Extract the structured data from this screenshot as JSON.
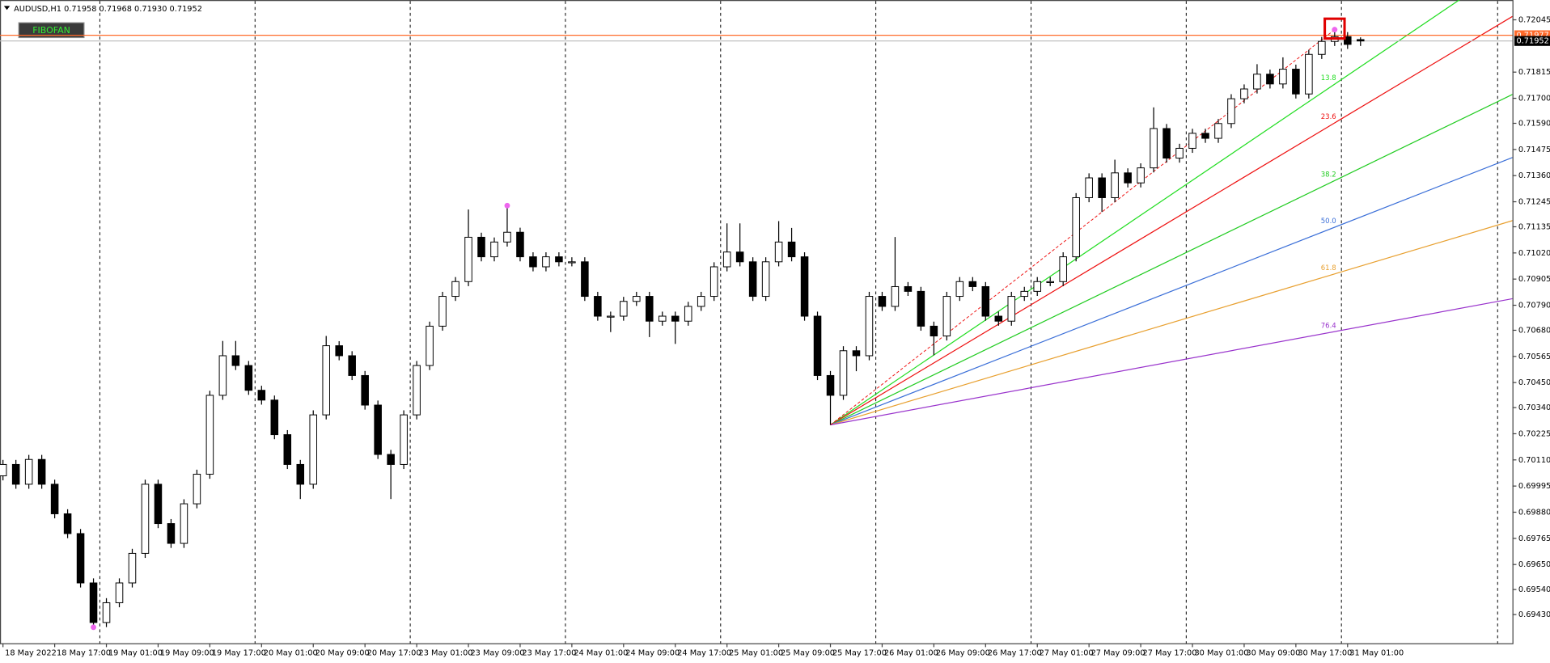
{
  "chart_data": {
    "type": "candlestick",
    "header": "AUDUSD,H1  0.71958 0.71968 0.71930 0.71952",
    "bull_color": "#ffffff",
    "bear_color": "#000000",
    "x": [
      0,
      2,
      4,
      6,
      8,
      10,
      12,
      14,
      16,
      18,
      20,
      22,
      24,
      26,
      28,
      30,
      32,
      34,
      36,
      38,
      40,
      42,
      44,
      46,
      48,
      50,
      52,
      54,
      56,
      58,
      60,
      62,
      64,
      66,
      68,
      70,
      72,
      74,
      76,
      78,
      80,
      82,
      84,
      86,
      88,
      90,
      92,
      94,
      96,
      98,
      100,
      102,
      104,
      106,
      108,
      110,
      112,
      114,
      116,
      118,
      120,
      122,
      124,
      126,
      128,
      130,
      132,
      134,
      136,
      138,
      140,
      142,
      144,
      146,
      148,
      150,
      152,
      154,
      156,
      158,
      160,
      162,
      164,
      166,
      168,
      170,
      172,
      174,
      176,
      178,
      180,
      182,
      184,
      186,
      188,
      190,
      192,
      194,
      196,
      198,
      200,
      202,
      204,
      206,
      208,
      210
    ],
    "ohlc": [
      [
        0.7004,
        0.7011,
        0.7002,
        0.7009
      ],
      [
        0.7009,
        0.7011,
        0.69983,
        0.70003
      ],
      [
        0.70003,
        0.70132,
        0.69983,
        0.70112
      ],
      [
        0.70112,
        0.70132,
        0.69983,
        0.70003
      ],
      [
        0.70003,
        0.70023,
        0.69853,
        0.69873
      ],
      [
        0.69873,
        0.69893,
        0.69766,
        0.69786
      ],
      [
        0.69786,
        0.69806,
        0.69549,
        0.69569
      ],
      [
        0.69569,
        0.69589,
        0.69374,
        0.69395
      ],
      [
        0.69395,
        0.69502,
        0.69375,
        0.69482
      ],
      [
        0.69482,
        0.69589,
        0.69462,
        0.69569
      ],
      [
        0.69569,
        0.69719,
        0.69549,
        0.69699
      ],
      [
        0.69699,
        0.70023,
        0.69679,
        0.70003
      ],
      [
        0.70003,
        0.70023,
        0.6981,
        0.6983
      ],
      [
        0.6983,
        0.6985,
        0.69723,
        0.69743
      ],
      [
        0.69743,
        0.69937,
        0.69723,
        0.69917
      ],
      [
        0.69917,
        0.70067,
        0.69897,
        0.70047
      ],
      [
        0.70047,
        0.70414,
        0.70027,
        0.70394
      ],
      [
        0.70394,
        0.70633,
        0.70374,
        0.70568
      ],
      [
        0.70568,
        0.70633,
        0.70505,
        0.70525
      ],
      [
        0.70525,
        0.70545,
        0.70396,
        0.70416
      ],
      [
        0.70416,
        0.70436,
        0.70353,
        0.70373
      ],
      [
        0.70373,
        0.70393,
        0.70201,
        0.70221
      ],
      [
        0.70221,
        0.70241,
        0.7007,
        0.7009
      ],
      [
        0.7009,
        0.7011,
        0.69938,
        0.70003
      ],
      [
        0.70003,
        0.70328,
        0.69983,
        0.70308
      ],
      [
        0.70308,
        0.70655,
        0.70288,
        0.70612
      ],
      [
        0.70612,
        0.70632,
        0.70548,
        0.70568
      ],
      [
        0.70568,
        0.70588,
        0.70461,
        0.70481
      ],
      [
        0.70481,
        0.70501,
        0.70331,
        0.70351
      ],
      [
        0.70351,
        0.70371,
        0.70114,
        0.70134
      ],
      [
        0.70134,
        0.70154,
        0.69938,
        0.7009
      ],
      [
        0.7009,
        0.70328,
        0.7007,
        0.70308
      ],
      [
        0.70308,
        0.70545,
        0.70288,
        0.70525
      ],
      [
        0.70525,
        0.70718,
        0.70505,
        0.70698
      ],
      [
        0.70698,
        0.70849,
        0.70678,
        0.70829
      ],
      [
        0.70829,
        0.70914,
        0.70809,
        0.70894
      ],
      [
        0.70894,
        0.71211,
        0.70874,
        0.71089
      ],
      [
        0.71089,
        0.71109,
        0.70983,
        0.71003
      ],
      [
        0.71003,
        0.71088,
        0.70983,
        0.71068
      ],
      [
        0.71068,
        0.71228,
        0.71048,
        0.71111
      ],
      [
        0.71111,
        0.71131,
        0.70983,
        0.71003
      ],
      [
        0.71003,
        0.71023,
        0.70939,
        0.70959
      ],
      [
        0.70959,
        0.71023,
        0.70939,
        0.71003
      ],
      [
        0.71003,
        0.71023,
        0.70961,
        0.70981
      ],
      [
        0.70981,
        0.71001,
        0.70961,
        0.70981
      ],
      [
        0.70981,
        0.71001,
        0.70809,
        0.70829
      ],
      [
        0.70829,
        0.70849,
        0.70722,
        0.70742
      ],
      [
        0.70742,
        0.70762,
        0.70672,
        0.70742
      ],
      [
        0.70742,
        0.70827,
        0.70722,
        0.70807
      ],
      [
        0.70807,
        0.70849,
        0.70787,
        0.70829
      ],
      [
        0.70829,
        0.70849,
        0.7065,
        0.7072
      ],
      [
        0.7072,
        0.70762,
        0.707,
        0.70742
      ],
      [
        0.70742,
        0.70762,
        0.7062,
        0.7072
      ],
      [
        0.7072,
        0.70805,
        0.707,
        0.70785
      ],
      [
        0.70785,
        0.70849,
        0.70765,
        0.70829
      ],
      [
        0.70829,
        0.70979,
        0.70809,
        0.70959
      ],
      [
        0.70959,
        0.7115,
        0.70939,
        0.71024
      ],
      [
        0.71024,
        0.7115,
        0.70961,
        0.70981
      ],
      [
        0.70981,
        0.71001,
        0.70809,
        0.70829
      ],
      [
        0.70829,
        0.71001,
        0.70809,
        0.70981
      ],
      [
        0.70981,
        0.7116,
        0.70961,
        0.71068
      ],
      [
        0.71068,
        0.7113,
        0.70983,
        0.71003
      ],
      [
        0.71003,
        0.71023,
        0.70722,
        0.70742
      ],
      [
        0.70742,
        0.70762,
        0.70461,
        0.70481
      ],
      [
        0.70481,
        0.70501,
        0.70264,
        0.70394
      ],
      [
        0.70394,
        0.7061,
        0.70374,
        0.7059
      ],
      [
        0.7059,
        0.7061,
        0.705,
        0.70568
      ],
      [
        0.70568,
        0.70849,
        0.70548,
        0.70829
      ],
      [
        0.70829,
        0.70849,
        0.70765,
        0.70785
      ],
      [
        0.70785,
        0.7109,
        0.70765,
        0.70872
      ],
      [
        0.70872,
        0.70892,
        0.70831,
        0.70851
      ],
      [
        0.70851,
        0.70871,
        0.70678,
        0.70698
      ],
      [
        0.70698,
        0.70718,
        0.7057,
        0.70655
      ],
      [
        0.70655,
        0.70849,
        0.70635,
        0.70829
      ],
      [
        0.70829,
        0.70914,
        0.70809,
        0.70894
      ],
      [
        0.70894,
        0.70914,
        0.70852,
        0.70872
      ],
      [
        0.70872,
        0.70892,
        0.70722,
        0.70742
      ],
      [
        0.70742,
        0.70762,
        0.707,
        0.7072
      ],
      [
        0.7072,
        0.70849,
        0.707,
        0.70829
      ],
      [
        0.70829,
        0.70871,
        0.70809,
        0.70851
      ],
      [
        0.70851,
        0.70914,
        0.70831,
        0.70894
      ],
      [
        0.70894,
        0.70914,
        0.70874,
        0.70894
      ],
      [
        0.70894,
        0.71023,
        0.70874,
        0.71003
      ],
      [
        0.71003,
        0.71283,
        0.70983,
        0.71263
      ],
      [
        0.71263,
        0.7137,
        0.71243,
        0.7135
      ],
      [
        0.7135,
        0.7137,
        0.712,
        0.71263
      ],
      [
        0.71263,
        0.7143,
        0.71243,
        0.71372
      ],
      [
        0.71372,
        0.71392,
        0.71308,
        0.71328
      ],
      [
        0.71328,
        0.71414,
        0.71308,
        0.71394
      ],
      [
        0.71394,
        0.7166,
        0.71374,
        0.71567
      ],
      [
        0.71567,
        0.71587,
        0.71417,
        0.71437
      ],
      [
        0.71437,
        0.715,
        0.71417,
        0.7148
      ],
      [
        0.7148,
        0.71566,
        0.7146,
        0.71546
      ],
      [
        0.71546,
        0.71566,
        0.71504,
        0.71524
      ],
      [
        0.71524,
        0.71609,
        0.71504,
        0.71589
      ],
      [
        0.71589,
        0.71718,
        0.71569,
        0.71698
      ],
      [
        0.71698,
        0.71761,
        0.71678,
        0.71741
      ],
      [
        0.71741,
        0.7185,
        0.71721,
        0.71806
      ],
      [
        0.71806,
        0.71826,
        0.71743,
        0.71763
      ],
      [
        0.71763,
        0.7188,
        0.71743,
        0.71828
      ],
      [
        0.71828,
        0.71848,
        0.71699,
        0.71719
      ],
      [
        0.71719,
        0.71913,
        0.71699,
        0.71893
      ],
      [
        0.71893,
        0.7197,
        0.71873,
        0.7195
      ],
      [
        0.7195,
        0.72002,
        0.7193,
        0.71971
      ],
      [
        0.71971,
        0.71991,
        0.71917,
        0.71937
      ],
      [
        0.71958,
        0.71968,
        0.7193,
        0.71952
      ]
    ],
    "xlim": [
      -0.46,
      233.5
    ],
    "xticks": [
      {
        "value": 0,
        "label": "18 May 2022"
      },
      {
        "value": 8,
        "label": "18 May 17:00"
      },
      {
        "value": 16,
        "label": "19 May 01:00"
      },
      {
        "value": 24,
        "label": "19 May 09:00"
      },
      {
        "value": 32,
        "label": "19 May 17:00"
      },
      {
        "value": 40,
        "label": "20 May 01:00"
      },
      {
        "value": 48,
        "label": "20 May 09:00"
      },
      {
        "value": 56,
        "label": "20 May 17:00"
      },
      {
        "value": 64,
        "label": "23 May 01:00"
      },
      {
        "value": 72,
        "label": "23 May 09:00"
      },
      {
        "value": 80,
        "label": "23 May 17:00"
      },
      {
        "value": 88,
        "label": "24 May 01:00"
      },
      {
        "value": 96,
        "label": "24 May 09:00"
      },
      {
        "value": 104,
        "label": "24 May 17:00"
      },
      {
        "value": 112,
        "label": "25 May 01:00"
      },
      {
        "value": 120,
        "label": "25 May 09:00"
      },
      {
        "value": 128,
        "label": "25 May 17:00"
      },
      {
        "value": 136,
        "label": "26 May 01:00"
      },
      {
        "value": 144,
        "label": "26 May 09:00"
      },
      {
        "value": 152,
        "label": "26 May 17:00"
      },
      {
        "value": 160,
        "label": "27 May 01:00"
      },
      {
        "value": 168,
        "label": "27 May 09:00"
      },
      {
        "value": 176,
        "label": "27 May 17:00"
      },
      {
        "value": 184,
        "label": "30 May 01:00"
      },
      {
        "value": 192,
        "label": "30 May 09:00"
      },
      {
        "value": 200,
        "label": "30 May 17:00"
      },
      {
        "value": 208,
        "label": "31 May 01:00"
      }
    ],
    "ylim": [
      0.69304,
      0.72132
    ],
    "yticks": [
      0.72045,
      0.71815,
      {
        "value": 0.717,
        "label": "0.71700"
      },
      {
        "value": 0.7159,
        "label": "0.71590"
      },
      0.71475,
      {
        "value": 0.7136,
        "label": "0.71360"
      },
      0.71245,
      0.71135,
      {
        "value": 0.7102,
        "label": "0.71020"
      },
      0.70905,
      {
        "value": 0.7079,
        "label": "0.70790"
      },
      {
        "value": 0.7068,
        "label": "0.70680"
      },
      0.70565,
      {
        "value": 0.7045,
        "label": "0.70450"
      },
      {
        "value": 0.7034,
        "label": "0.70340"
      },
      0.70225,
      {
        "value": 0.7011,
        "label": "0.70110"
      },
      0.69995,
      {
        "value": 0.6988,
        "label": "0.69880"
      },
      0.69765,
      {
        "value": 0.6965,
        "label": "0.69650"
      },
      {
        "value": 0.6954,
        "label": "0.69540"
      },
      {
        "value": 0.6943,
        "label": "0.69430"
      }
    ],
    "hlines": [
      {
        "value": 0.71977,
        "color": "#ff6a2a"
      }
    ],
    "fractals": [
      {
        "x": 14,
        "y": 0.69374
      },
      {
        "x": 78,
        "y": 0.71228
      },
      {
        "x": 206,
        "y": 0.72002
      }
    ],
    "fan": {
      "button": "FIBOFAN",
      "origin": {
        "x": 128,
        "y": 0.70264
      },
      "end": {
        "x": 206,
        "y": 0.72002
      },
      "levels": [
        {
          "value": 13.8,
          "color": "#22dd22"
        },
        {
          "value": 23.6,
          "color": "#ee1111"
        },
        {
          "value": 38.2,
          "color": "#22cc22"
        },
        {
          "value": 50,
          "label": "50.0",
          "color": "#3b6fd8"
        },
        {
          "value": 61.8,
          "label": "61.8",
          "color": "#e8a030"
        },
        {
          "value": 76.4,
          "color": "#9933cc"
        }
      ]
    }
  }
}
